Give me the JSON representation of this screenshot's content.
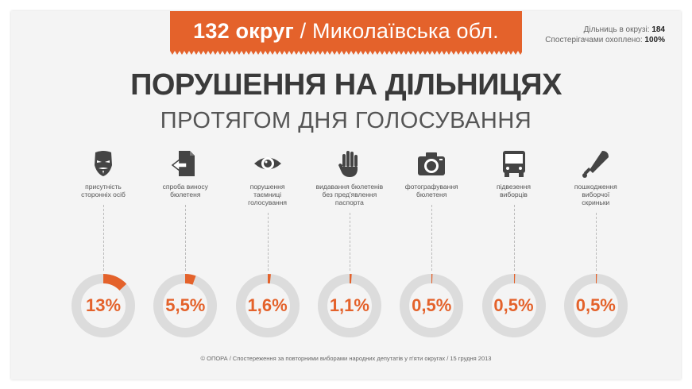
{
  "header": {
    "district": "132 округ",
    "region": "/ Миколаївська обл.",
    "stations_label": "Дільниць в окрузі:",
    "stations_value": "184",
    "coverage_label": "Спостерігачами охоплено:",
    "coverage_value": "100%"
  },
  "title": "ПОРУШЕННЯ НА ДІЛЬНИЦЯХ",
  "subtitle": "ПРОТЯГОМ ДНЯ ГОЛОСУВАННЯ",
  "footer": "© ОПОРА / Спостереження за повторними виборами народних депутатів  у п'яти округах / 15 грудня 2013",
  "colors": {
    "accent": "#e4622b",
    "track": "#dcdcdc"
  },
  "chart_data": {
    "type": "pie",
    "title": "ПОРУШЕННЯ НА ДІЛЬНИЦЯХ",
    "subtitle": "ПРОТЯГОМ ДНЯ ГОЛОСУВАННЯ",
    "unit": "%",
    "categories": [
      {
        "label": [
          "присутність",
          "сторонніх осіб"
        ],
        "icon": "mask-icon",
        "value": 13,
        "display": "13%"
      },
      {
        "label": [
          "спроба виносу",
          "бюлетеня"
        ],
        "icon": "document-out-icon",
        "value": 5.5,
        "display": "5,5%"
      },
      {
        "label": [
          "порушення",
          "таємниці",
          "голосування"
        ],
        "icon": "eye-icon",
        "value": 1.6,
        "display": "1,6%"
      },
      {
        "label": [
          "видавання бюлетенів",
          "без пред'явлення",
          "паспорта"
        ],
        "icon": "hand-icon",
        "value": 1.1,
        "display": "1,1%"
      },
      {
        "label": [
          "фотографування",
          "бюлетеня"
        ],
        "icon": "camera-icon",
        "value": 0.5,
        "display": "0,5%"
      },
      {
        "label": [
          "підвезення",
          "виборців"
        ],
        "icon": "bus-icon",
        "value": 0.5,
        "display": "0,5%"
      },
      {
        "label": [
          "пошкодження",
          "виборчої",
          "скриньки"
        ],
        "icon": "bat-icon",
        "value": 0.5,
        "display": "0,5%"
      }
    ]
  }
}
